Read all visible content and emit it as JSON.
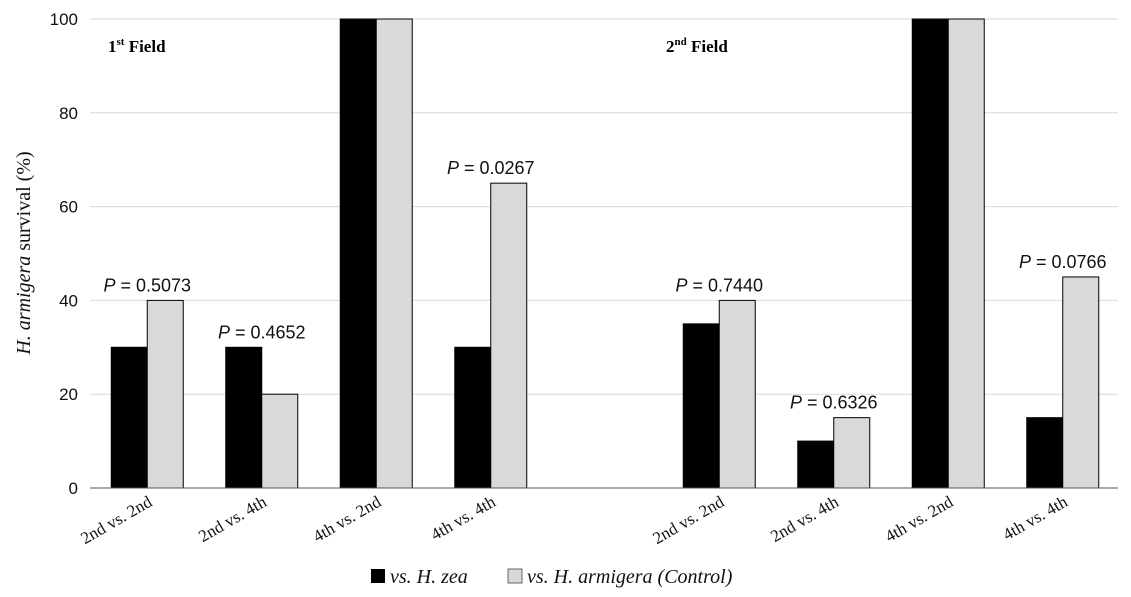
{
  "chart_data": {
    "type": "bar",
    "ylabel": "H. armigera survival (%)",
    "ylabel_parts": [
      "H. armigera",
      " survival (%)"
    ],
    "ylim": [
      0,
      100
    ],
    "yticks": [
      "0",
      "20",
      "40",
      "60",
      "80",
      "100"
    ],
    "grid": true,
    "legend_position": "bottom-center",
    "groups": [
      {
        "label_main": "1",
        "label_sup": "st",
        "label_rest": " Field"
      },
      {
        "label_main": "2",
        "label_sup": "nd",
        "label_rest": " Field"
      }
    ],
    "categories": [
      "2nd vs. 2nd",
      "2nd vs. 4th",
      "4th vs. 2nd",
      "4th vs. 4th",
      "2nd vs. 2nd",
      "2nd vs. 4th",
      "4th vs. 2nd",
      "4th vs. 4th"
    ],
    "series": [
      {
        "name": "vs. H. zea",
        "color": "#000000",
        "values": [
          30,
          30,
          100,
          30,
          35,
          10,
          100,
          15
        ]
      },
      {
        "name": "vs. H. armigera (Control)",
        "color": "#d9d9d9",
        "values": [
          40,
          20,
          100,
          65,
          40,
          15,
          100,
          45
        ]
      }
    ],
    "annotations": [
      {
        "index": 0,
        "p_label": "P",
        "text": " = 0.5073"
      },
      {
        "index": 1,
        "p_label": "P",
        "text": " = 0.4652"
      },
      {
        "index": 3,
        "p_label": "P",
        "text": " = 0.0267"
      },
      {
        "index": 4,
        "p_label": "P",
        "text": " = 0.7440"
      },
      {
        "index": 5,
        "p_label": "P",
        "text": " = 0.6326"
      },
      {
        "index": 7,
        "p_label": "P",
        "text": " = 0.0766"
      }
    ]
  }
}
